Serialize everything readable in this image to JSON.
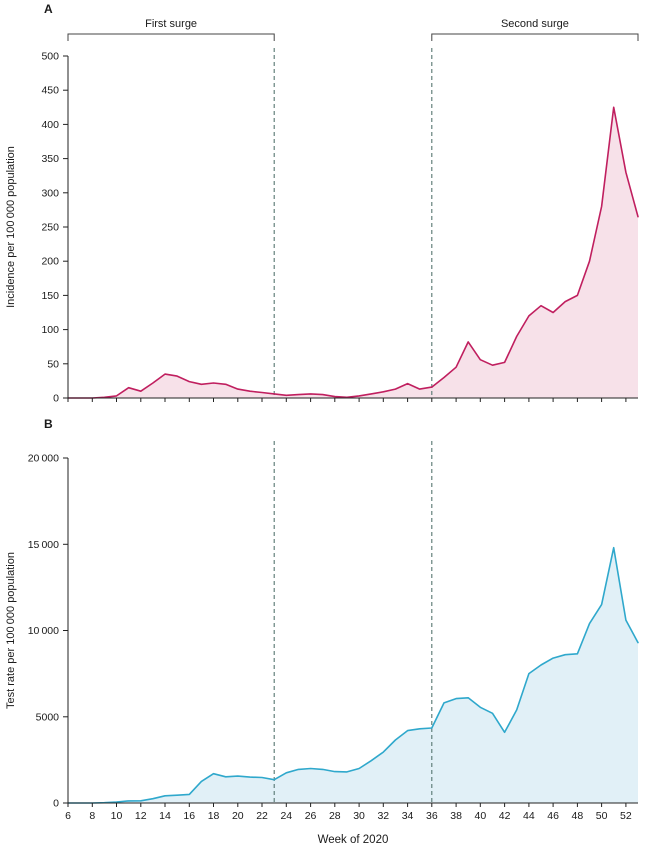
{
  "panels": {
    "a": {
      "letter": "A"
    },
    "b": {
      "letter": "B"
    }
  },
  "figure": {
    "xlabel": "Week of 2020",
    "x_range": [
      6,
      53
    ],
    "x_tick_labels": [
      6,
      8,
      10,
      12,
      14,
      16,
      18,
      20,
      22,
      24,
      26,
      28,
      30,
      32,
      34,
      36,
      38,
      40,
      42,
      44,
      46,
      48,
      50,
      52
    ],
    "dashed_lines_weeks": [
      23,
      36
    ],
    "brackets": [
      {
        "label": "First surge",
        "start_week": 6,
        "end_week": 23
      },
      {
        "label": "Second surge",
        "start_week": 36,
        "end_week": 53
      }
    ]
  },
  "chart_data": [
    {
      "type": "area",
      "panel": "A",
      "title": "",
      "ylabel": "Incidence per 100 000 population",
      "ylim": [
        0,
        500
      ],
      "yticks": [
        0,
        50,
        100,
        150,
        200,
        250,
        300,
        350,
        400,
        450,
        500
      ],
      "ytick_labels": [
        "0",
        "50",
        "100",
        "150",
        "200",
        "250",
        "300",
        "350",
        "400",
        "450",
        "500"
      ],
      "x": [
        6,
        7,
        8,
        9,
        10,
        11,
        12,
        13,
        14,
        15,
        16,
        17,
        18,
        19,
        20,
        21,
        22,
        23,
        24,
        25,
        26,
        27,
        28,
        29,
        30,
        31,
        32,
        33,
        34,
        35,
        36,
        37,
        38,
        39,
        40,
        41,
        42,
        43,
        44,
        45,
        46,
        47,
        48,
        49,
        50,
        51,
        52,
        53
      ],
      "values": [
        0,
        0,
        0,
        1,
        3,
        15,
        10,
        22,
        35,
        32,
        24,
        20,
        22,
        20,
        13,
        10,
        8,
        6,
        4,
        5,
        6,
        5,
        2,
        1,
        3,
        6,
        9,
        13,
        21,
        13,
        16,
        30,
        45,
        82,
        56,
        48,
        52,
        90,
        120,
        135,
        125,
        141,
        150,
        200,
        280,
        425,
        330,
        265
      ],
      "line_color": "#c01f5f",
      "fill_color": "#f7e1e9"
    },
    {
      "type": "area",
      "panel": "B",
      "title": "",
      "ylabel": "Test rate per 100 000 population",
      "ylim": [
        0,
        20000
      ],
      "yticks": [
        0,
        5000,
        10000,
        15000,
        20000
      ],
      "ytick_labels": [
        "0",
        "5000",
        "10 000",
        "15 000",
        "20 000"
      ],
      "x": [
        6,
        7,
        8,
        9,
        10,
        11,
        12,
        13,
        14,
        15,
        16,
        17,
        18,
        19,
        20,
        21,
        22,
        23,
        24,
        25,
        26,
        27,
        28,
        29,
        30,
        31,
        32,
        33,
        34,
        35,
        36,
        37,
        38,
        39,
        40,
        41,
        42,
        43,
        44,
        45,
        46,
        47,
        48,
        49,
        50,
        51,
        52,
        53
      ],
      "values": [
        0,
        0,
        0,
        20,
        60,
        120,
        130,
        250,
        420,
        450,
        500,
        1250,
        1700,
        1520,
        1560,
        1500,
        1480,
        1350,
        1750,
        1950,
        2000,
        1950,
        1820,
        1800,
        2000,
        2450,
        2950,
        3650,
        4200,
        4300,
        4350,
        5800,
        6050,
        6100,
        5550,
        5200,
        4100,
        5400,
        7500,
        8000,
        8400,
        8600,
        8650,
        10400,
        11500,
        14800,
        10600,
        9300
      ],
      "line_color": "#2fa8cc",
      "fill_color": "#e1f0f7"
    }
  ],
  "colors": {
    "axis": "#222222",
    "text": "#1a1a1a",
    "dashed_line": "#567670",
    "bracket": "#444444"
  }
}
